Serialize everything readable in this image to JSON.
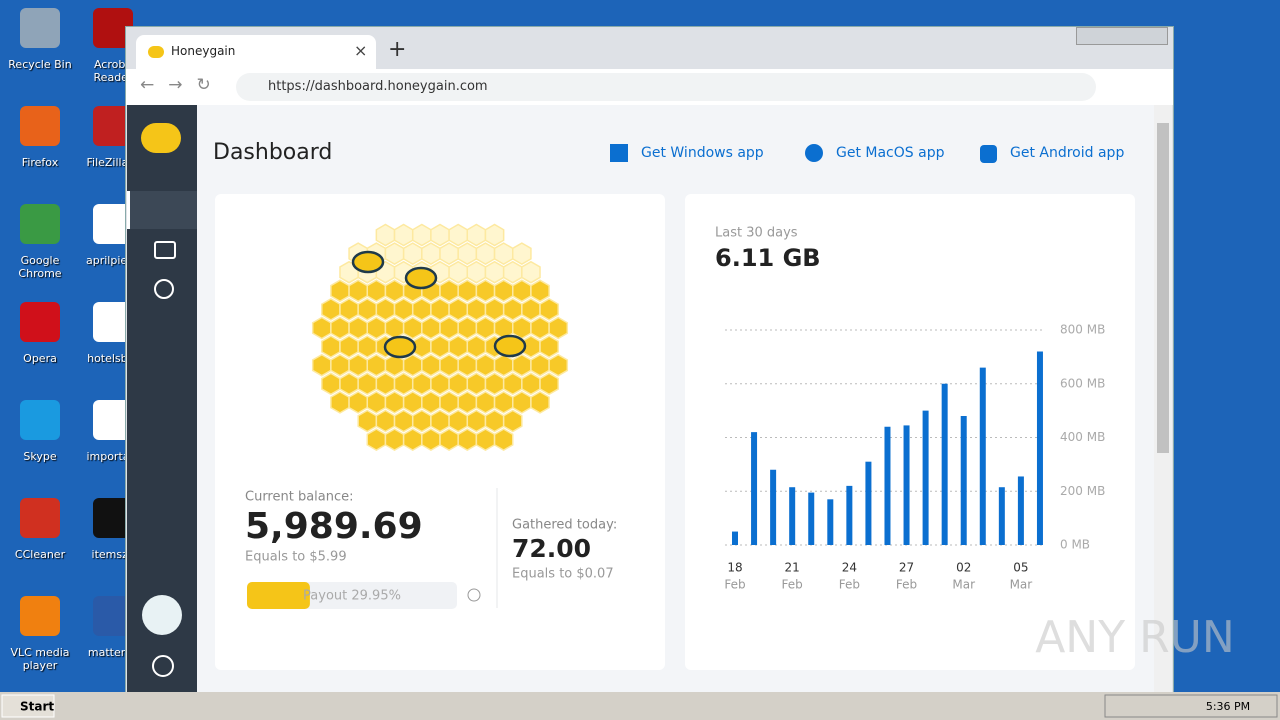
{
  "desktop_icons": [
    "Recycle Bin",
    "Acroba Reader",
    "Firefox",
    "FileZilla C",
    "Google Chrome",
    "aprilpiece",
    "Opera",
    "hotelsbor",
    "Skype",
    "importanl",
    "CCleaner",
    "itemsz.j",
    "VLC media player",
    "matterjoi"
  ],
  "browser": {
    "tab_title": "Honeygain",
    "url": "https://dashboard.honeygain.com"
  },
  "dashboard": {
    "title": "Dashboard",
    "app_links": [
      "Get Windows app",
      "Get MacOS app",
      "Get Android app"
    ]
  },
  "balance": {
    "label": "Current balance:",
    "value": "5,989.69",
    "equals": "Equals to $5.99",
    "payout": {
      "label": "Payout 29.95%",
      "value": 29.95
    }
  },
  "today": {
    "label": "Gathered today:",
    "value": "72.00",
    "equals": "Equals to $0.07"
  },
  "chart_data": {
    "type": "bar",
    "subtitle": "Last 30 days",
    "title": "6.11 GB",
    "categories": [
      "18",
      null,
      null,
      "21",
      null,
      null,
      "24",
      null,
      null,
      "27",
      null,
      null,
      "02",
      null,
      null,
      "05",
      null
    ],
    "category_months": [
      "Feb",
      null,
      null,
      "Feb",
      null,
      null,
      "Feb",
      null,
      null,
      "Feb",
      null,
      null,
      "Mar",
      null,
      null,
      "Mar",
      null
    ],
    "values": [
      50,
      420,
      280,
      215,
      195,
      170,
      220,
      310,
      440,
      445,
      500,
      600,
      480,
      660,
      215,
      255,
      720
    ],
    "color": "#0b6fd0",
    "ylim": [
      0,
      800
    ],
    "yticks": [
      {
        "value": 0,
        "label": "0 MB"
      },
      {
        "value": 200,
        "label": "200 MB"
      },
      {
        "value": 400,
        "label": "400 MB"
      },
      {
        "value": 600,
        "label": "600 MB"
      },
      {
        "value": 800,
        "label": "800 MB"
      }
    ],
    "grid": true
  },
  "taskbar": {
    "start": "Start",
    "clock": "5:36 PM"
  },
  "watermark": "ANY RUN"
}
